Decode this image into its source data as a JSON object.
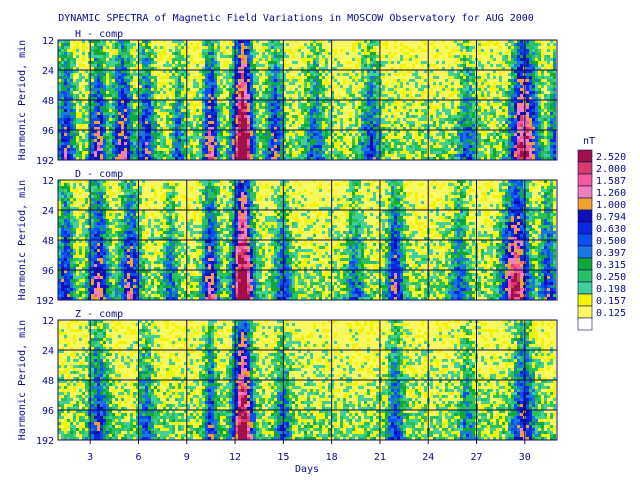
{
  "chart_data": {
    "type": "heatmap",
    "title": "DYNAMIC SPECTRA of Magnetic Field Variations in MOSCOW Observatory for AUG 2000",
    "xlabel": "Days",
    "ylabel": "Harmonic Period, min",
    "x_range": [
      1,
      32
    ],
    "x_ticks": [
      "3",
      "6",
      "9",
      "12",
      "15",
      "18",
      "21",
      "24",
      "27",
      "30"
    ],
    "x_tick_values": [
      3,
      6,
      9,
      12,
      15,
      18,
      21,
      24,
      27,
      30
    ],
    "y_ticks": [
      "12",
      "24",
      "48",
      "96",
      "192"
    ],
    "y_tick_values": [
      12,
      24,
      48,
      96,
      192
    ],
    "y_scale": "log2",
    "grid": true,
    "panels": [
      {
        "label": "H - comp",
        "activity": [
          {
            "center": 1.5,
            "width": 0.5,
            "amp": 0.45
          },
          {
            "center": 3.5,
            "width": 0.5,
            "amp": 0.5
          },
          {
            "center": 5.0,
            "width": 0.6,
            "amp": 0.55
          },
          {
            "center": 6.5,
            "width": 0.5,
            "amp": 0.45
          },
          {
            "center": 8.5,
            "width": 0.4,
            "amp": 0.3
          },
          {
            "center": 10.5,
            "width": 0.45,
            "amp": 0.6
          },
          {
            "center": 12.5,
            "width": 0.6,
            "amp": 1.0
          },
          {
            "center": 14.5,
            "width": 0.5,
            "amp": 0.45
          },
          {
            "center": 17.0,
            "width": 0.6,
            "amp": 0.3
          },
          {
            "center": 20.5,
            "width": 0.6,
            "amp": 0.35
          },
          {
            "center": 26.5,
            "width": 0.6,
            "amp": 0.3
          },
          {
            "center": 30.0,
            "width": 0.8,
            "amp": 0.75
          },
          {
            "center": 32.0,
            "width": 0.5,
            "amp": 0.35
          }
        ]
      },
      {
        "label": "D - comp",
        "activity": [
          {
            "center": 1.5,
            "width": 0.5,
            "amp": 0.45
          },
          {
            "center": 3.5,
            "width": 0.6,
            "amp": 0.55
          },
          {
            "center": 5.5,
            "width": 0.6,
            "amp": 0.5
          },
          {
            "center": 8.0,
            "width": 0.4,
            "amp": 0.3
          },
          {
            "center": 10.5,
            "width": 0.5,
            "amp": 0.55
          },
          {
            "center": 12.5,
            "width": 0.6,
            "amp": 1.0
          },
          {
            "center": 15.0,
            "width": 0.5,
            "amp": 0.35
          },
          {
            "center": 19.5,
            "width": 0.5,
            "amp": 0.3
          },
          {
            "center": 22.0,
            "width": 0.5,
            "amp": 0.5
          },
          {
            "center": 26.0,
            "width": 0.6,
            "amp": 0.3
          },
          {
            "center": 29.5,
            "width": 0.8,
            "amp": 0.75
          },
          {
            "center": 31.5,
            "width": 0.5,
            "amp": 0.4
          }
        ]
      },
      {
        "label": "Z - comp",
        "activity": [
          {
            "center": 3.5,
            "width": 0.6,
            "amp": 0.4
          },
          {
            "center": 6.5,
            "width": 0.5,
            "amp": 0.3
          },
          {
            "center": 10.5,
            "width": 0.4,
            "amp": 0.4
          },
          {
            "center": 12.5,
            "width": 0.6,
            "amp": 0.9
          },
          {
            "center": 15.0,
            "width": 0.5,
            "amp": 0.3
          },
          {
            "center": 22.0,
            "width": 0.5,
            "amp": 0.35
          },
          {
            "center": 26.5,
            "width": 0.5,
            "amp": 0.25
          },
          {
            "center": 30.0,
            "width": 0.7,
            "amp": 0.45
          }
        ]
      }
    ],
    "colorbar": {
      "unit": "nT",
      "levels": [
        {
          "label": "2.520",
          "color": "#a0104a"
        },
        {
          "label": "2.000",
          "color": "#d83a6a"
        },
        {
          "label": "1.587",
          "color": "#f45a9a"
        },
        {
          "label": "1.260",
          "color": "#f080c0"
        },
        {
          "label": "1.000",
          "color": "#f0a030"
        },
        {
          "label": "0.794",
          "color": "#1010b8"
        },
        {
          "label": "0.630",
          "color": "#0a28e0"
        },
        {
          "label": "0.500",
          "color": "#0a50f0"
        },
        {
          "label": "0.397",
          "color": "#1878e0"
        },
        {
          "label": "0.315",
          "color": "#10a838"
        },
        {
          "label": "0.250",
          "color": "#28c060"
        },
        {
          "label": "0.198",
          "color": "#40d098"
        },
        {
          "label": "0.157",
          "color": "#f4f400"
        },
        {
          "label": "0.125",
          "color": "#f8f860"
        },
        {
          "label": "",
          "color": "#ffffff"
        }
      ]
    }
  }
}
